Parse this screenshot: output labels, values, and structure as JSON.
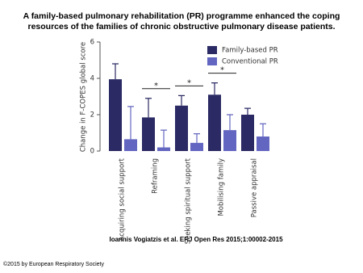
{
  "chart_data": {
    "type": "bar",
    "title": "A family-based pulmonary rehabilitation (PR) programme enhanced the coping resources of the families of chronic obstructive pulmonary disease patients.",
    "y_label": "Change in F-COPES global score",
    "categories": [
      "Acquiring social support",
      "Reframing",
      "Seeking spiritual support",
      "Mobilising family",
      "Passive appraisal"
    ],
    "series": [
      {
        "name": "Family-based PR",
        "color": "#2b2a64",
        "values": [
          3.95,
          1.85,
          2.5,
          3.1,
          2.0
        ],
        "errors": [
          0.85,
          1.05,
          0.55,
          0.65,
          0.35
        ]
      },
      {
        "name": "Conventional PR",
        "color": "#6366c0",
        "values": [
          0.65,
          0.2,
          0.45,
          1.15,
          0.8
        ],
        "errors": [
          1.8,
          0.95,
          0.5,
          0.85,
          0.7
        ]
      }
    ],
    "annotations": [
      null,
      "*",
      "*",
      "*",
      null
    ],
    "ylim": [
      0,
      6
    ],
    "yticks": [
      0,
      2,
      4,
      6
    ],
    "grid": false,
    "legend": "top-right",
    "citation": "Ioannis Vogiatzis et al. ERJ Open Res 2015;1:00002-2015",
    "copyright": "©2015 by European Respiratory Society"
  }
}
